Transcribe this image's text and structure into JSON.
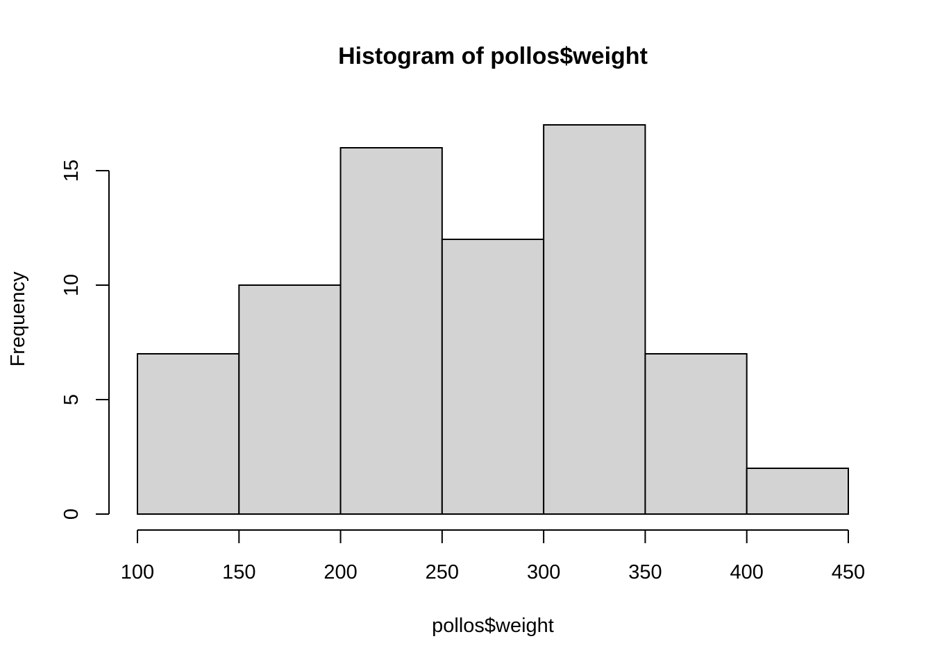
{
  "chart_data": {
    "type": "bar",
    "title": "Histogram of pollos$weight",
    "xlabel": "pollos$weight",
    "ylabel": "Frequency",
    "bins": [
      {
        "from": 100,
        "to": 150,
        "count": 7
      },
      {
        "from": 150,
        "to": 200,
        "count": 10
      },
      {
        "from": 200,
        "to": 250,
        "count": 16
      },
      {
        "from": 250,
        "to": 300,
        "count": 12
      },
      {
        "from": 300,
        "to": 350,
        "count": 17
      },
      {
        "from": 350,
        "to": 400,
        "count": 7
      },
      {
        "from": 400,
        "to": 450,
        "count": 2
      }
    ],
    "xlim": [
      100,
      450
    ],
    "ylim": [
      0,
      17
    ],
    "x_ticks": [
      "100",
      "150",
      "200",
      "250",
      "300",
      "350",
      "400",
      "450"
    ],
    "y_ticks": [
      "0",
      "5",
      "10",
      "15"
    ],
    "bar_color": "#d3d3d3",
    "grid": false
  }
}
